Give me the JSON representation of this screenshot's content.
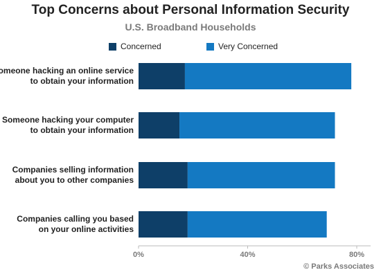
{
  "chart_data": {
    "type": "bar",
    "orientation": "horizontal",
    "stacked": true,
    "title": "Top Concerns about Personal Information Security",
    "subtitle": "U.S. Broadband Households",
    "categories": [
      [
        "Someone hacking an online service",
        "to obtain your information"
      ],
      [
        "Someone hacking your computer",
        "to obtain your information"
      ],
      [
        "Companies selling information",
        "about you to other companies"
      ],
      [
        "Companies calling you based",
        "on your online activities"
      ]
    ],
    "series": [
      {
        "name": "Concerned",
        "color": "#0e3f68",
        "values": [
          17,
          15,
          18,
          18
        ]
      },
      {
        "name": "Very Concerned",
        "color": "#1479c2",
        "values": [
          61,
          57,
          54,
          51
        ]
      }
    ],
    "xlim": [
      0,
      80
    ],
    "xticks": [
      {
        "value": 0,
        "label": "0%"
      },
      {
        "value": 40,
        "label": "40%"
      },
      {
        "value": 80,
        "label": "80%"
      }
    ],
    "legend_position": "top",
    "grid": false
  },
  "source": "© Parks Associates"
}
